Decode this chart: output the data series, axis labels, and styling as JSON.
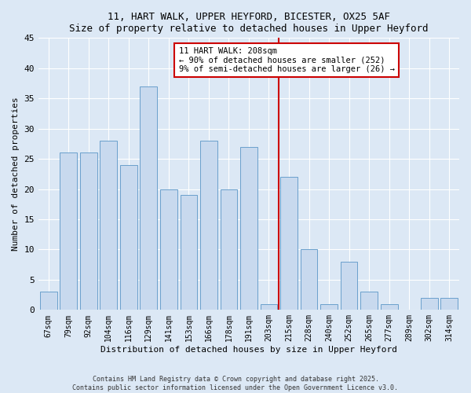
{
  "title1": "11, HART WALK, UPPER HEYFORD, BICESTER, OX25 5AF",
  "title2": "Size of property relative to detached houses in Upper Heyford",
  "xlabel": "Distribution of detached houses by size in Upper Heyford",
  "ylabel": "Number of detached properties",
  "bar_labels": [
    "67sqm",
    "79sqm",
    "92sqm",
    "104sqm",
    "116sqm",
    "129sqm",
    "141sqm",
    "153sqm",
    "166sqm",
    "178sqm",
    "191sqm",
    "203sqm",
    "215sqm",
    "228sqm",
    "240sqm",
    "252sqm",
    "265sqm",
    "277sqm",
    "289sqm",
    "302sqm",
    "314sqm"
  ],
  "bar_values": [
    3,
    26,
    26,
    28,
    24,
    37,
    20,
    19,
    28,
    20,
    27,
    1,
    22,
    10,
    1,
    8,
    3,
    1,
    0,
    2,
    2
  ],
  "bar_color": "#c8d9ee",
  "bar_edge_color": "#6aa0cc",
  "vline_index": 11.5,
  "annotation_line1": "11 HART WALK: 208sqm",
  "annotation_line2": "← 90% of detached houses are smaller (252)",
  "annotation_line3": "9% of semi-detached houses are larger (26) →",
  "vline_color": "#cc0000",
  "annotation_box_edge": "#cc0000",
  "ylim": [
    0,
    45
  ],
  "yticks": [
    0,
    5,
    10,
    15,
    20,
    25,
    30,
    35,
    40,
    45
  ],
  "footer1": "Contains HM Land Registry data © Crown copyright and database right 2025.",
  "footer2": "Contains public sector information licensed under the Open Government Licence v3.0.",
  "bg_color": "#dce8f5",
  "plot_bg_color": "#dce8f5"
}
